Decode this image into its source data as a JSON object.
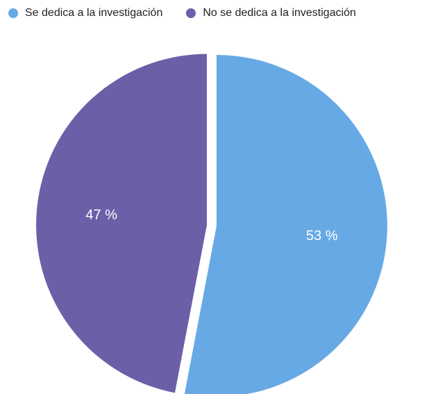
{
  "chart_data": {
    "type": "pie",
    "title": "",
    "legend_position": "top-left",
    "series": [
      {
        "name": "Se dedica a la investigación",
        "value": 53,
        "label": "53 %",
        "color": "#67a9e4",
        "exploded": false
      },
      {
        "name": "No se dedica a la investigación",
        "value": 47,
        "label": "47 %",
        "color": "#6c5fa8",
        "exploded": true
      }
    ]
  }
}
